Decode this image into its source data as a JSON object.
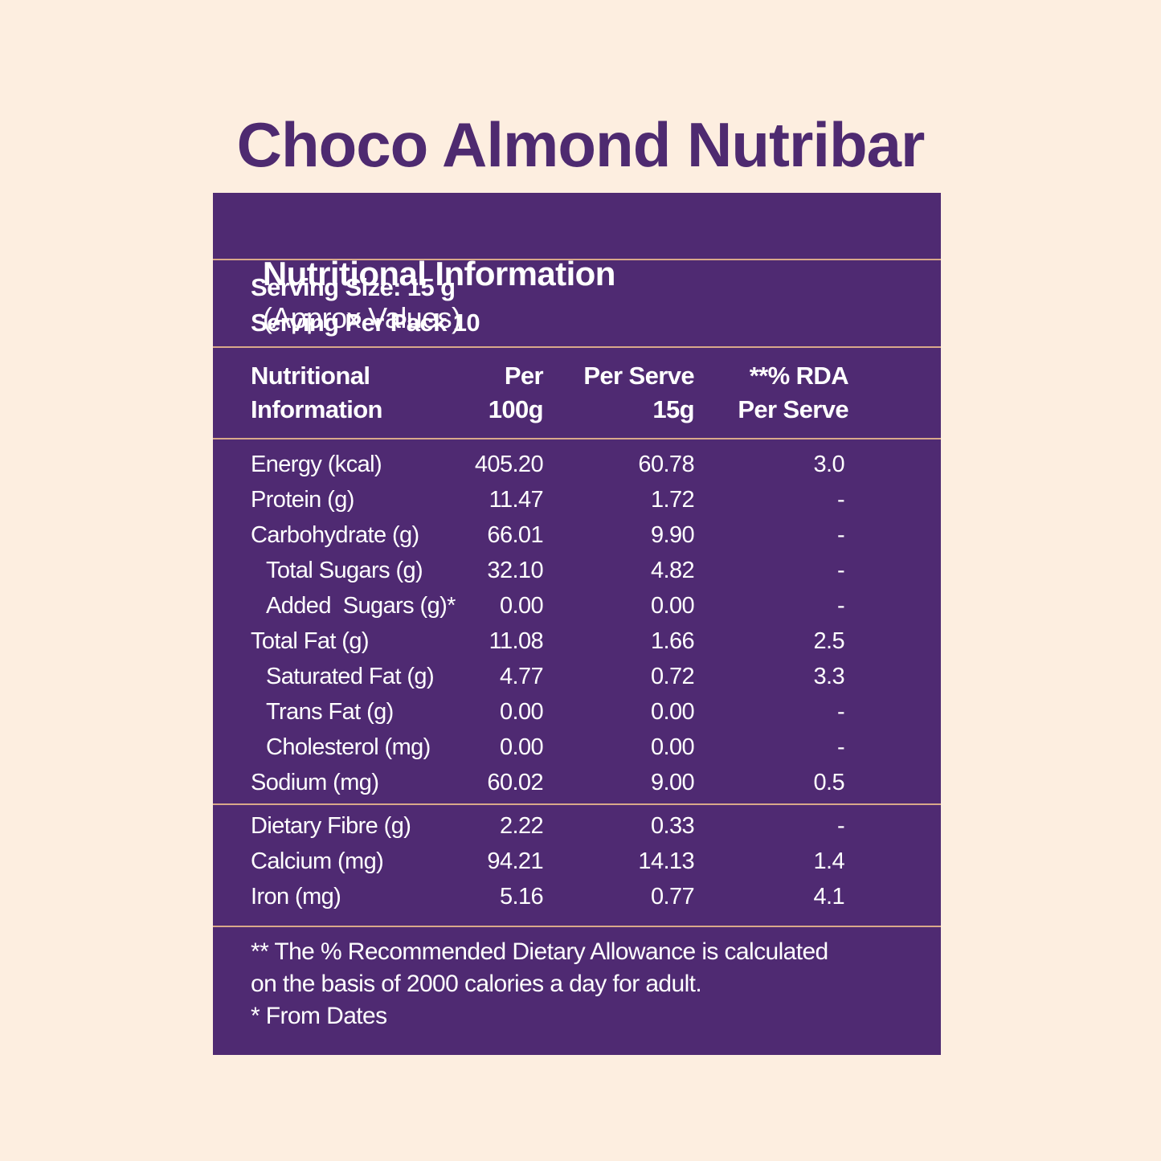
{
  "title": "Choco Almond Nutribar",
  "header": {
    "title": "Nutritional Information",
    "note": "(Approx Values)"
  },
  "serving": [
    "Serving Size: 15 g",
    "Serving Per Pack 10"
  ],
  "table": {
    "columns": [
      [
        "Nutritional",
        "Information"
      ],
      [
        "Per",
        "100g"
      ],
      [
        "Per Serve",
        "15g"
      ],
      [
        "**% RDA",
        "Per Serve"
      ]
    ],
    "groups": [
      [
        {
          "label": "Energy (kcal)",
          "per_100g": "405.20",
          "per_serve": "60.78",
          "rda": "3.0",
          "indent": false
        },
        {
          "label": "Protein (g)",
          "per_100g": "11.47",
          "per_serve": "1.72",
          "rda": "-",
          "indent": false
        },
        {
          "label": "Carbohydrate (g)",
          "per_100g": "66.01",
          "per_serve": "9.90",
          "rda": "-",
          "indent": false
        },
        {
          "label": "Total Sugars (g)",
          "per_100g": "32.10",
          "per_serve": "4.82",
          "rda": "-",
          "indent": true
        },
        {
          "label": "Added  Sugars (g)*",
          "per_100g": "0.00",
          "per_serve": "0.00",
          "rda": "-",
          "indent": true
        },
        {
          "label": "Total Fat (g)",
          "per_100g": "11.08",
          "per_serve": "1.66",
          "rda": "2.5",
          "indent": false
        },
        {
          "label": "Saturated Fat (g)",
          "per_100g": "4.77",
          "per_serve": "0.72",
          "rda": "3.3",
          "indent": true
        },
        {
          "label": "Trans Fat (g)",
          "per_100g": "0.00",
          "per_serve": "0.00",
          "rda": "-",
          "indent": true
        },
        {
          "label": "Cholesterol (mg)",
          "per_100g": "0.00",
          "per_serve": "0.00",
          "rda": "-",
          "indent": true
        },
        {
          "label": "Sodium (mg)",
          "per_100g": "60.02",
          "per_serve": "9.00",
          "rda": "0.5",
          "indent": false
        }
      ],
      [
        {
          "label": "Dietary Fibre (g)",
          "per_100g": "2.22",
          "per_serve": "0.33",
          "rda": "-",
          "indent": false
        },
        {
          "label": "Calcium (mg)",
          "per_100g": "94.21",
          "per_serve": "14.13",
          "rda": "1.4",
          "indent": false
        },
        {
          "label": "Iron (mg)",
          "per_100g": "5.16",
          "per_serve": "0.77",
          "rda": "4.1",
          "indent": false
        }
      ]
    ]
  },
  "footnotes": [
    "** The % Recommended Dietary Allowance is calculated",
    "on the basis of 2000 calories a day for adult.",
    "* From Dates"
  ]
}
